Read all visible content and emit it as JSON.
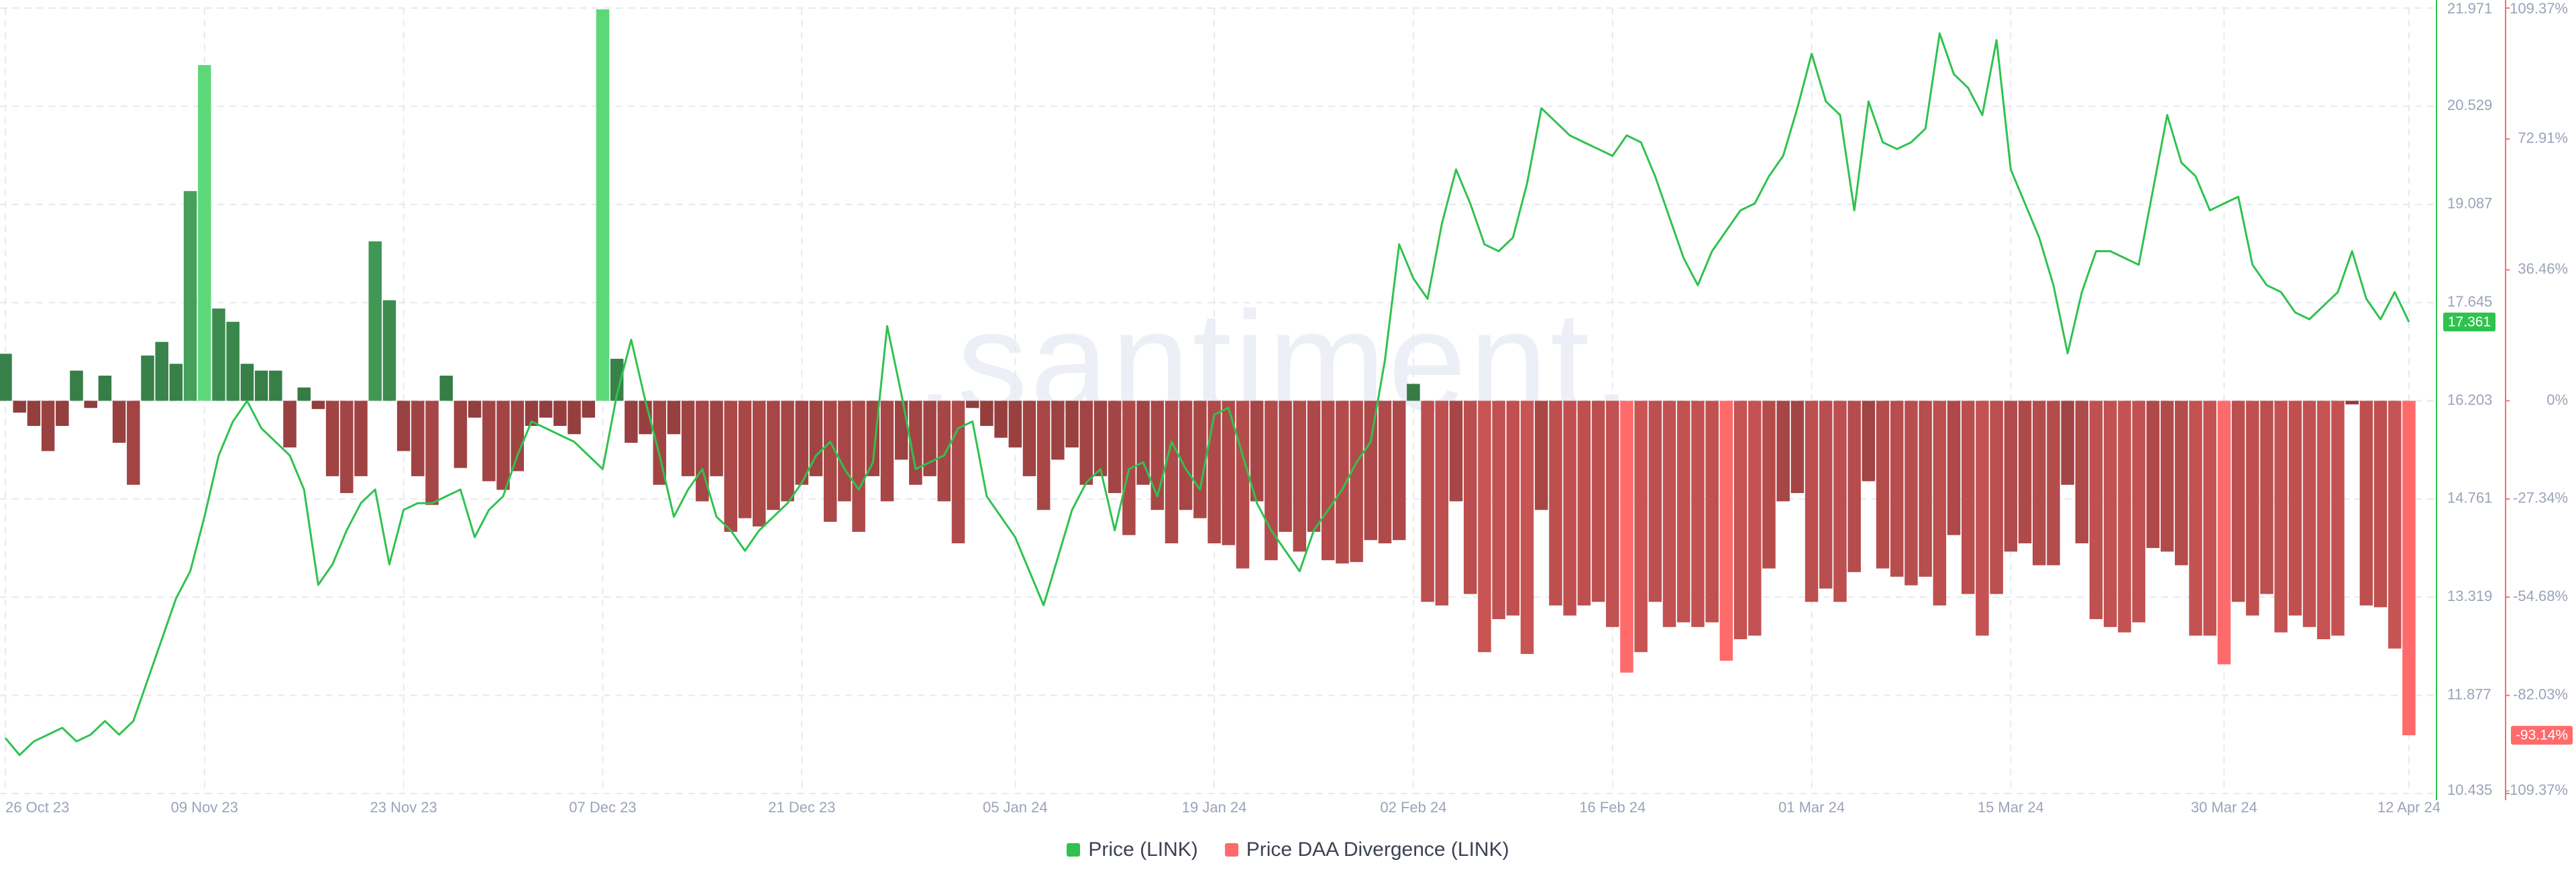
{
  "chart_data": {
    "type": "combo",
    "watermark": ".santiment.",
    "categories": [
      "26 Oct 23",
      null,
      null,
      null,
      null,
      null,
      null,
      null,
      null,
      null,
      null,
      null,
      null,
      null,
      "09 Nov 23",
      null,
      null,
      null,
      null,
      null,
      null,
      null,
      null,
      null,
      null,
      null,
      null,
      null,
      "23 Nov 23",
      null,
      null,
      null,
      null,
      null,
      null,
      null,
      null,
      null,
      null,
      null,
      null,
      null,
      "07 Dec 23",
      null,
      null,
      null,
      null,
      null,
      null,
      null,
      null,
      null,
      null,
      null,
      null,
      null,
      "21 Dec 23",
      null,
      null,
      null,
      null,
      null,
      null,
      null,
      null,
      null,
      null,
      null,
      null,
      null,
      null,
      "05 Jan 24",
      null,
      null,
      null,
      null,
      null,
      null,
      null,
      null,
      null,
      null,
      null,
      null,
      null,
      "19 Jan 24",
      null,
      null,
      null,
      null,
      null,
      null,
      null,
      null,
      null,
      null,
      null,
      null,
      null,
      "02 Feb 24",
      null,
      null,
      null,
      null,
      null,
      null,
      null,
      null,
      null,
      null,
      null,
      null,
      null,
      "16 Feb 24",
      null,
      null,
      null,
      null,
      null,
      null,
      null,
      null,
      null,
      null,
      null,
      null,
      null,
      "01 Mar 24",
      null,
      null,
      null,
      null,
      null,
      null,
      null,
      null,
      null,
      null,
      null,
      null,
      null,
      "15 Mar 24",
      null,
      null,
      null,
      null,
      null,
      null,
      null,
      null,
      null,
      null,
      null,
      null,
      null,
      null,
      "30 Mar 24",
      null,
      null,
      null,
      null,
      null,
      null,
      null,
      null,
      null,
      null,
      null,
      null,
      "12 Apr 24"
    ],
    "series": [
      {
        "name": "Price (LINK)",
        "type": "line",
        "color": "#2fc24f",
        "last_label": "17.361",
        "values": [
          11.25,
          11.0,
          11.2,
          11.3,
          11.4,
          11.2,
          11.3,
          11.5,
          11.3,
          11.5,
          12.1,
          12.7,
          13.3,
          13.7,
          14.5,
          15.4,
          15.9,
          16.2,
          15.8,
          15.6,
          15.4,
          14.9,
          13.5,
          13.8,
          14.3,
          14.7,
          14.9,
          13.8,
          14.6,
          14.7,
          14.7,
          14.8,
          14.9,
          14.2,
          14.6,
          14.8,
          15.4,
          15.9,
          15.8,
          15.7,
          15.6,
          15.4,
          15.2,
          16.3,
          17.1,
          16.2,
          15.4,
          14.5,
          14.9,
          15.2,
          14.5,
          14.3,
          14.0,
          14.3,
          14.5,
          14.7,
          15.0,
          15.4,
          15.6,
          15.2,
          14.9,
          15.3,
          17.3,
          16.3,
          15.2,
          15.3,
          15.4,
          15.8,
          15.9,
          14.8,
          14.5,
          14.2,
          13.7,
          13.2,
          13.9,
          14.6,
          15.0,
          15.2,
          14.3,
          15.2,
          15.3,
          14.8,
          15.6,
          15.2,
          14.9,
          16.0,
          16.1,
          15.4,
          14.7,
          14.3,
          14.0,
          13.7,
          14.3,
          14.6,
          14.9,
          15.3,
          15.6,
          16.8,
          18.5,
          18.0,
          17.7,
          18.8,
          19.6,
          19.1,
          18.5,
          18.4,
          18.6,
          19.4,
          20.5,
          20.3,
          20.1,
          20.0,
          19.9,
          19.8,
          20.1,
          20.0,
          19.5,
          18.9,
          18.3,
          17.9,
          18.4,
          18.7,
          19.0,
          19.1,
          19.5,
          19.8,
          20.5,
          21.3,
          20.6,
          20.4,
          19.0,
          20.6,
          20.0,
          19.9,
          20.0,
          20.2,
          21.6,
          21.0,
          20.8,
          20.4,
          21.5,
          19.6,
          19.1,
          18.6,
          17.9,
          16.9,
          17.8,
          18.4,
          18.4,
          18.3,
          18.2,
          19.3,
          20.4,
          19.7,
          19.5,
          19.0,
          19.1,
          19.2,
          18.2,
          17.9,
          17.8,
          17.5,
          17.4,
          17.6,
          17.8,
          18.4,
          17.7,
          17.4,
          17.8,
          17.361
        ]
      },
      {
        "name": "Price DAA Divergence (LINK)",
        "type": "bar",
        "axis": "y2",
        "color": "#ff6b6b",
        "positive_color": "#5dd879",
        "last_label": "-93.14%",
        "values": [
          13.1,
          -3.3,
          -7,
          -14,
          -7,
          8.4,
          -2,
          7,
          -11.7,
          -23.4,
          12.6,
          16.4,
          10.3,
          58.4,
          93.5,
          25.7,
          22,
          10.3,
          8.4,
          8.4,
          -13,
          3.7,
          -2.3,
          -21,
          -25.7,
          -21,
          44.4,
          28,
          -14,
          -21,
          -29,
          7,
          -18.7,
          -4.7,
          -22.4,
          -24.8,
          -19.6,
          -7,
          -4.7,
          -7,
          -9.3,
          -4.7,
          109,
          11.7,
          -11.7,
          -9.3,
          -23.4,
          -9.3,
          -21,
          -28,
          -21,
          -36.5,
          -32.7,
          -35,
          -30.4,
          -28,
          -23.4,
          -21,
          -33.7,
          -28,
          -36.5,
          -21,
          -28,
          -16.4,
          -23.4,
          -21,
          -28,
          -39.7,
          -2,
          -7,
          -10.3,
          -13,
          -21,
          -30.4,
          -16.4,
          -13,
          -23.4,
          -21,
          -25.7,
          -37.4,
          -23.4,
          -30.4,
          -39.7,
          -30.4,
          -32.7,
          -39.7,
          -40.2,
          -46.7,
          -28,
          -44.4,
          -36.5,
          -42,
          -36.5,
          -44.4,
          -45.3,
          -44.9,
          -38.8,
          -39.7,
          -38.8,
          4.7,
          -56,
          -57,
          -28,
          -53.8,
          -70,
          -60.8,
          -59.8,
          -70.5,
          -30.4,
          -57,
          -59.8,
          -57,
          -56,
          -63,
          -75.7,
          -70,
          -56,
          -63,
          -61.7,
          -63,
          -61.7,
          -72.4,
          -66.4,
          -65.4,
          -46.7,
          -28,
          -25.7,
          -56,
          -52.3,
          -56,
          -47.7,
          -22.4,
          -46.7,
          -49,
          -51.4,
          -49,
          -57,
          -37.4,
          -53.8,
          -65.4,
          -53.8,
          -42,
          -39.7,
          -45.8,
          -45.8,
          -23.4,
          -39.7,
          -60.8,
          -63,
          -64.5,
          -61.7,
          -41,
          -42,
          -45.8,
          -65.4,
          -65.4,
          -73.4,
          -56,
          -59.8,
          -53.8,
          -64.5,
          -59.8,
          -63,
          -66.4,
          -65.4,
          -1,
          -57,
          -57.5,
          -69,
          -93.14
        ]
      }
    ],
    "ylim": [
      10.435,
      21.971
    ],
    "yticks": [
      21.971,
      20.529,
      19.087,
      17.645,
      16.203,
      14.761,
      13.319,
      11.877,
      10.435
    ],
    "y2lim": [
      -109.37,
      109.37
    ],
    "y2ticks": [
      {
        "value": 109.37,
        "label": "109.37%"
      },
      {
        "value": 72.91,
        "label": "72.91%"
      },
      {
        "value": 36.46,
        "label": "36.46%"
      },
      {
        "value": 0,
        "label": "0%"
      },
      {
        "value": -27.34,
        "label": "-27.34%"
      },
      {
        "value": -54.68,
        "label": "-54.68%"
      },
      {
        "value": -82.03,
        "label": "-82.03%"
      },
      {
        "value": -109.37,
        "label": "-109.37%"
      }
    ],
    "grid": true,
    "legend": "bottom"
  }
}
